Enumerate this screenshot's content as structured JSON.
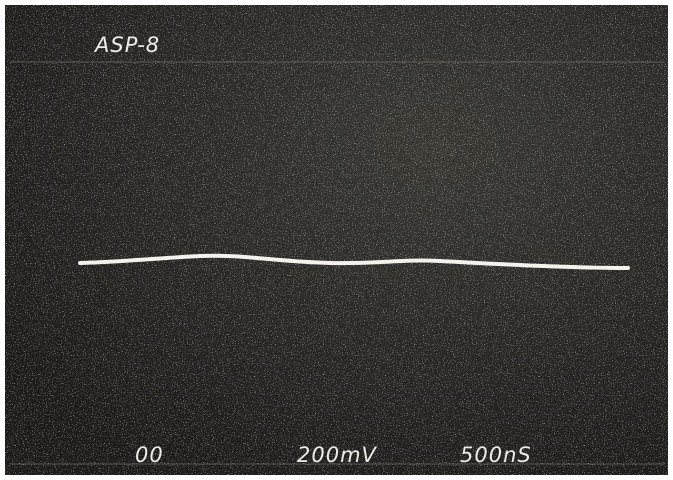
{
  "screen": {
    "label": "ASP-8",
    "readouts": [
      "00",
      "200mV",
      "500nS"
    ]
  }
}
